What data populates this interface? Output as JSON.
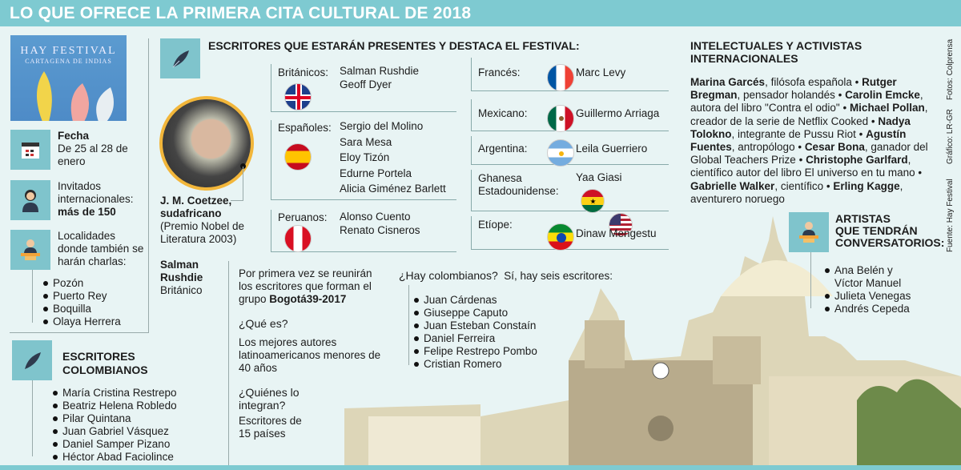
{
  "header": {
    "title": "LO QUE OFRECE LA PRIMERA CITA CULTURAL DE 2018"
  },
  "poster": {
    "line1": "HAY FESTIVAL",
    "line2": "CARTAGENA DE INDIAS"
  },
  "facts": [
    {
      "icon": "calendar-icon",
      "title": "Fecha",
      "text": "De 25 al 28 de enero"
    },
    {
      "icon": "person-icon",
      "text": "Invitados internacionales:",
      "bold": "más de 150"
    },
    {
      "icon": "speaker-podium-icon",
      "text": "Localidades donde también se harán charlas:"
    }
  ],
  "localidades": [
    "Pozón",
    "Puerto Rey",
    "Boquilla",
    "Olaya Herrera"
  ],
  "writers": {
    "title": "ESCRITORES QUE ESTARÁN PRESENTES Y DESTACA EL FESTIVAL:",
    "groups": [
      {
        "label": "Británicos:",
        "flag": "uk",
        "names": [
          "Salman Rushdie",
          "Geoff Dyer"
        ]
      },
      {
        "label": "Españoles:",
        "flag": "spain",
        "names": [
          "Sergio del Molino",
          "Sara Mesa",
          "Eloy Tizón",
          "Edurne Portela",
          "Alicia Giménez Barlett"
        ]
      },
      {
        "label": "Peruanos:",
        "flag": "peru",
        "names": [
          "Alonso Cuento",
          "Renato Cisneros"
        ]
      },
      {
        "label": "Francés:",
        "flag": "france",
        "names": [
          "Marc Levy"
        ]
      },
      {
        "label": "Mexicano:",
        "flag": "mexico",
        "names": [
          "Guillermo Arriaga"
        ]
      },
      {
        "label": "Argentina:",
        "flag": "argentina",
        "names": [
          "Leila Guerriero"
        ]
      },
      {
        "label": "Ghanesa Estadounidense:",
        "flag": "ghana-usa",
        "names": [
          "Yaa Giasi"
        ]
      },
      {
        "label": "Etíope:",
        "flag": "ethiopia",
        "names": [
          "Dinaw Mengestu"
        ]
      }
    ]
  },
  "coetzee": {
    "name": "J. M. Coetzee,",
    "nat": "sudafricano",
    "note": "(Premio Nobel de Literatura 2003)"
  },
  "rushdie": {
    "name1": "Salman",
    "name2": "Rushdie",
    "nat": "Británico"
  },
  "bogota": {
    "intro": "Por primera vez se reunirán los escritores que forman el grupo",
    "group": "Bogotá39-2017",
    "q1": "¿Qué es?",
    "a1": "Los mejores autores latinoamericanos menores de 40 años",
    "q2": "¿Quiénes lo integran?",
    "a2": "Escritores de 15 países"
  },
  "colombianos_q": {
    "q": "¿Hay colombianos?",
    "a": "Sí, hay seis escritores:",
    "names": [
      "Juan Cárdenas",
      "Giuseppe Caputo",
      "Juan Esteban Constaín",
      "Daniel Ferreira",
      "Felipe Restrepo Pombo",
      "Cristian Romero"
    ]
  },
  "escritores_colombianos": {
    "title1": "ESCRITORES",
    "title2": "COLOMBIANOS",
    "names": [
      "María Cristina Restrepo",
      "Beatriz Helena Robledo",
      "Pilar Quintana",
      "Juan Gabriel Vásquez",
      "Daniel Samper Pizano",
      "Héctor Abad Faciolince"
    ]
  },
  "intelectuales": {
    "title": "INTELECTUALES Y ACTIVISTAS INTERNACIONALES",
    "items": [
      {
        "name": "Marina Garcés",
        "desc": ", filósofa española"
      },
      {
        "name": "Rutger Bregman",
        "desc": ", pensador holandés"
      },
      {
        "name": "Carolin Emcke",
        "desc": ", autora del libro \"Contra el odio\""
      },
      {
        "name": "Michael Pollan",
        "desc": ", creador de la serie de Netflix Cooked"
      },
      {
        "name": "Nadya Tolokno",
        "desc": ", integrante de Pussu Riot"
      },
      {
        "name": "Agustín Fuentes",
        "desc": ", antropólogo"
      },
      {
        "name": "Cesar Bona",
        "desc": ", ganador del Global Teachers Prize"
      },
      {
        "name": "Christophe Garlfard",
        "desc": ", científico autor del libro El universo en tu mano"
      },
      {
        "name": "Gabrielle Walker",
        "desc": ", científico"
      },
      {
        "name": "Erling Kagge",
        "desc": ", aventurero noruego"
      }
    ]
  },
  "artistas": {
    "title": [
      "ARTISTAS",
      "QUE TENDRÁN",
      "CONVERSATORIOS:"
    ],
    "names": [
      "Ana Belén y Víctor Manuel",
      "Julieta Venegas",
      "Andrés Cepeda"
    ]
  },
  "credits": {
    "fotos": "Fotos: Colprensa",
    "grafico": "Gráfico: LR-GR",
    "fuente": "Fuente: Hay Festival"
  },
  "colors": {
    "header": "#7ecad1",
    "background": "#e8f4f4",
    "icon_box": "#7fc4cc",
    "portrait_ring": "#f2b63a"
  }
}
